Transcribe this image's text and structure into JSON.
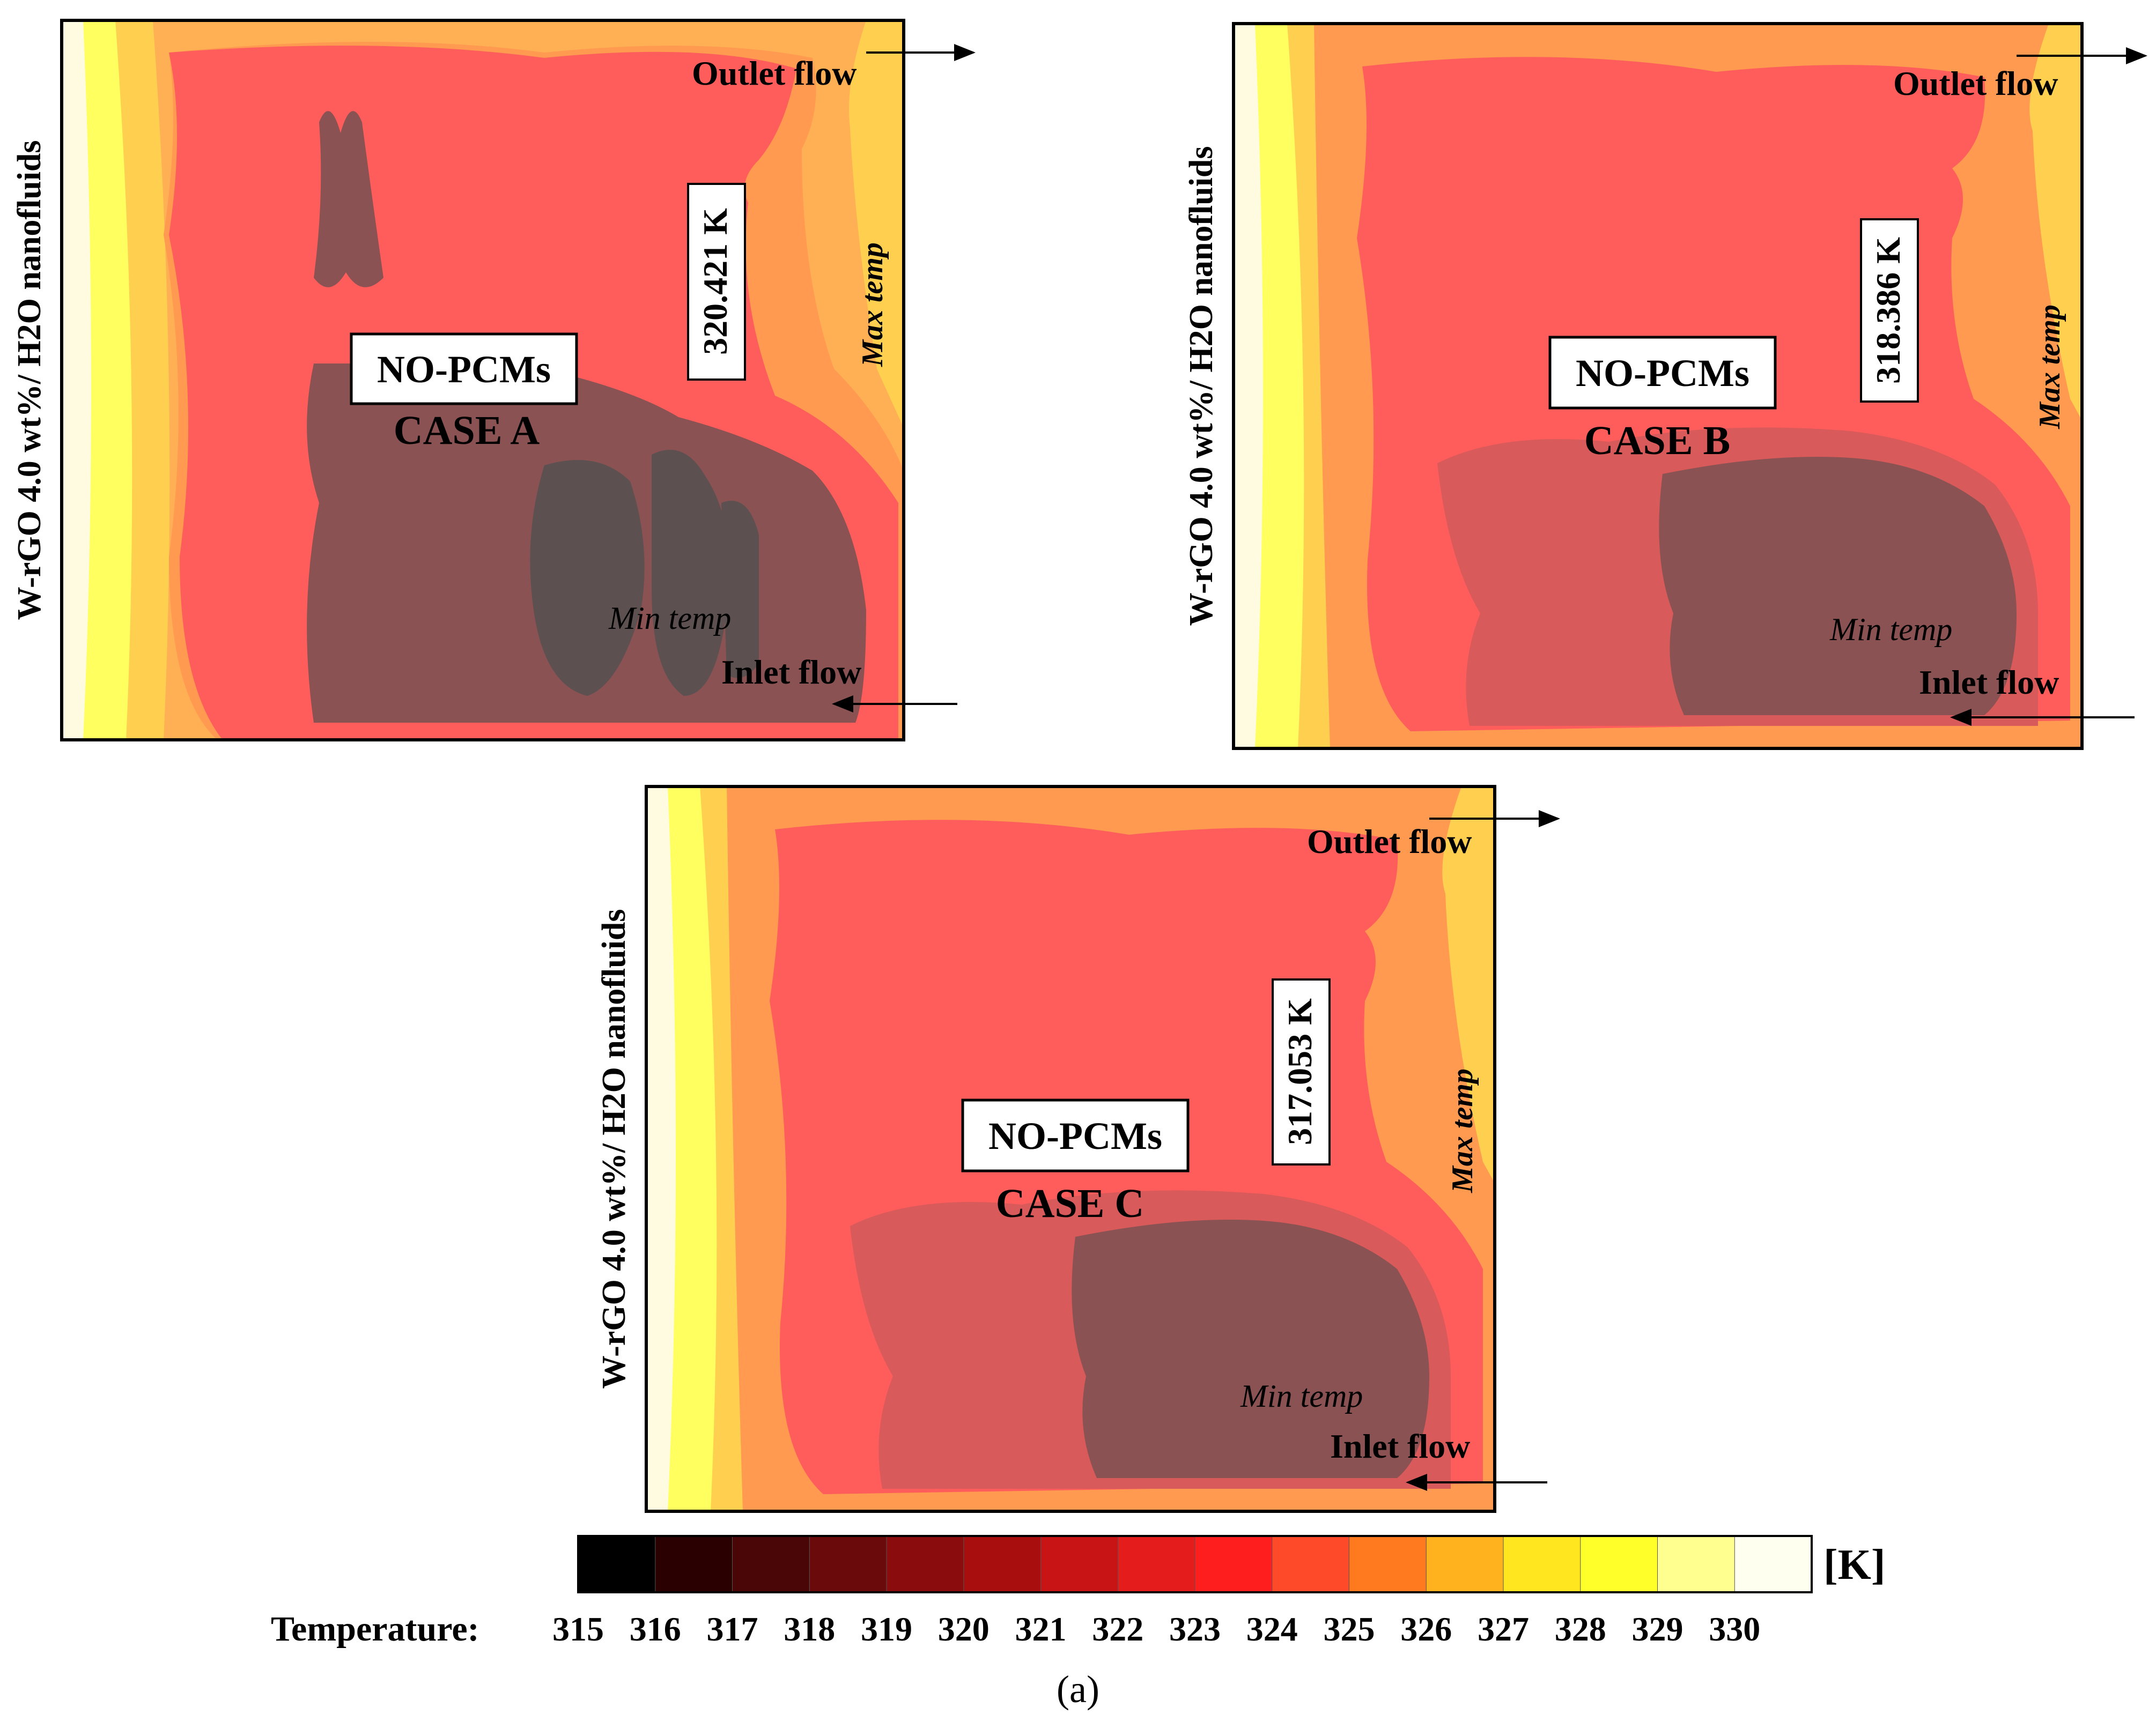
{
  "figure": {
    "caption": "(a)",
    "colorbar": {
      "label": "Temperature:",
      "unit": "[K]",
      "ticks": [
        "315",
        "316",
        "317",
        "318",
        "319",
        "320",
        "321",
        "322",
        "323",
        "324",
        "325",
        "326",
        "327",
        "328",
        "329",
        "330"
      ],
      "range": [
        315,
        330
      ],
      "colors": [
        "#000000",
        "#2a0000",
        "#4a0606",
        "#6a0a0a",
        "#8a0c0c",
        "#a80e0e",
        "#c81414",
        "#e41c1c",
        "#ff1e1e",
        "#ff4a2a",
        "#ff7a1e",
        "#ffb21e",
        "#ffe61e",
        "#ffff2a",
        "#ffff90",
        "#fffff0"
      ]
    },
    "panels": [
      {
        "id": "A",
        "side_label": "W-rGO 4.0 wt%/ H2O nanofluids",
        "box_label": "NO-PCMs",
        "case_label": "CASE A",
        "max_temp_value": "320.421 K",
        "max_temp_label": "Max temp",
        "min_temp_label": "Min temp",
        "outlet_label": "Outlet flow",
        "inlet_label": "Inlet flow"
      },
      {
        "id": "B",
        "side_label": "W-rGO 4.0 wt%/ H2O nanofluids",
        "box_label": "NO-PCMs",
        "case_label": "CASE B",
        "max_temp_value": "318.386 K",
        "max_temp_label": "Max temp",
        "min_temp_label": "Min temp",
        "outlet_label": "Outlet flow",
        "inlet_label": "Inlet flow"
      },
      {
        "id": "C",
        "side_label": "W-rGO 4.0 wt%/ H2O nanofluids",
        "box_label": "NO-PCMs",
        "case_label": "CASE C",
        "max_temp_value": "317.053 K",
        "max_temp_label": "Max temp",
        "min_temp_label": "Min temp",
        "outlet_label": "Outlet flow",
        "inlet_label": "Inlet flow"
      }
    ]
  }
}
